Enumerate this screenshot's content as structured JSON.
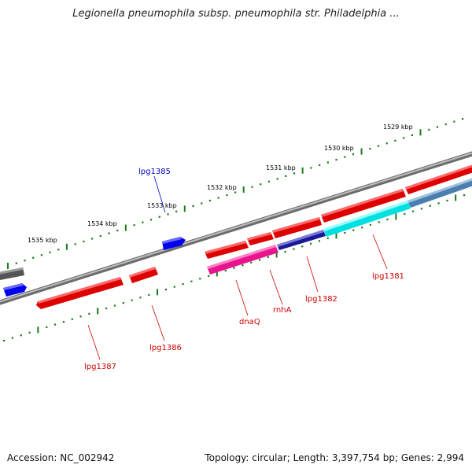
{
  "title": "Legionella pneumophila subsp. pneumophila str. Philadelphia ...",
  "footer": {
    "accession_label": "Accession:",
    "accession": "NC_002942",
    "topology_label": "Topology:",
    "topology": "circular",
    "length_label": "Length:",
    "length": "3,397,754 bp",
    "genes_label": "Genes:",
    "genes": "2,994"
  },
  "ticks": [
    {
      "label": "1535 kbp"
    },
    {
      "label": "1534 kbp"
    },
    {
      "label": "1533 kbp"
    },
    {
      "label": "1532 kbp"
    },
    {
      "label": "1531 kbp"
    },
    {
      "label": "1530 kbp"
    },
    {
      "label": "1529 kbp"
    }
  ],
  "gene_labels": [
    {
      "name": "lpg1385",
      "color": "#0000cc"
    },
    {
      "name": "lpg1381",
      "color": "#cc0000"
    },
    {
      "name": "lpg1382",
      "color": "#cc0000"
    },
    {
      "name": "rnhA",
      "color": "#cc0000"
    },
    {
      "name": "dnaQ",
      "color": "#cc0000"
    },
    {
      "name": "lpg1386",
      "color": "#cc0000"
    },
    {
      "name": "lpg1387",
      "color": "#cc0000"
    }
  ],
  "colors": {
    "backbone": "#8a8a8a",
    "tick": "#1a7a1a",
    "cds_red": "#ee0000",
    "cds_blue": "#0000ee",
    "cds_grey": "#666666",
    "cds_magenta": "#ee1493",
    "cds_navy": "#1a1a99",
    "cds_cyan": "#00eeee",
    "cds_steel": "#4682b4"
  }
}
